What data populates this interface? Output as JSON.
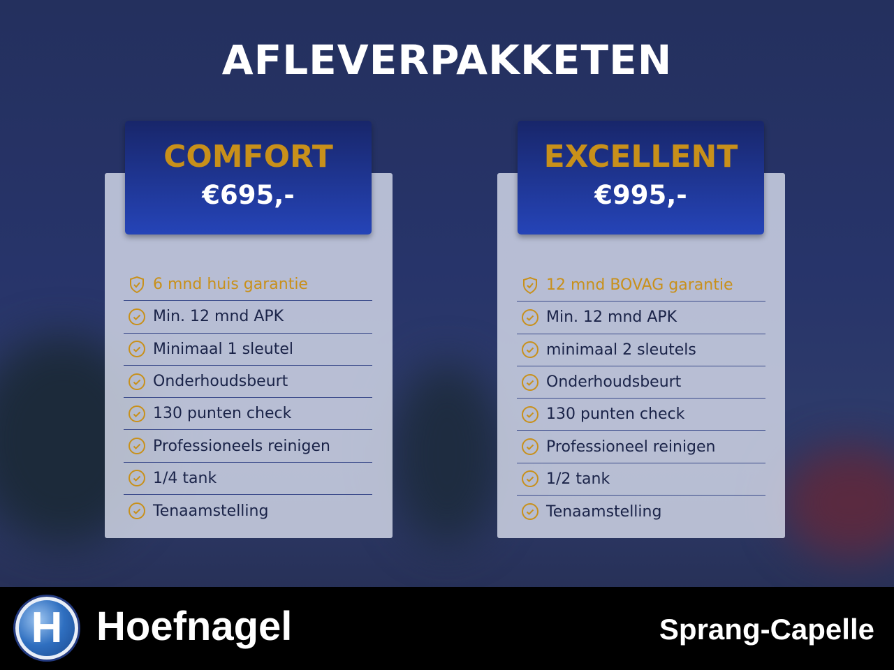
{
  "title": "AFLEVERPAKKETEN",
  "packages": [
    {
      "name": "COMFORT",
      "price": "€695,-",
      "items": [
        {
          "icon": "shield-check-icon",
          "text": "6 mnd huis garantie",
          "highlight": true
        },
        {
          "icon": "check-circle-icon",
          "text": "Min. 12 mnd APK"
        },
        {
          "icon": "check-circle-icon",
          "text": "Minimaal 1 sleutel"
        },
        {
          "icon": "check-circle-icon",
          "text": "Onderhoudsbeurt"
        },
        {
          "icon": "check-circle-icon",
          "text": "130 punten check"
        },
        {
          "icon": "check-circle-icon",
          "text": "Professioneels reinigen"
        },
        {
          "icon": "check-circle-icon",
          "text": "1/4 tank"
        },
        {
          "icon": "check-circle-icon",
          "text": "Tenaamstelling"
        }
      ]
    },
    {
      "name": "EXCELLENT",
      "price": "€995,-",
      "items": [
        {
          "icon": "shield-check-icon",
          "text": "12 mnd BOVAG garantie",
          "highlight": true
        },
        {
          "icon": "check-circle-icon",
          "text": "Min. 12 mnd APK"
        },
        {
          "icon": "check-circle-icon",
          "text": "minimaal 2 sleutels"
        },
        {
          "icon": "check-circle-icon",
          "text": "Onderhoudsbeurt"
        },
        {
          "icon": "check-circle-icon",
          "text": "130 punten check"
        },
        {
          "icon": "check-circle-icon",
          "text": "Professioneel reinigen"
        },
        {
          "icon": "check-circle-icon",
          "text": "1/2 tank"
        },
        {
          "icon": "check-circle-icon",
          "text": "Tenaamstelling"
        }
      ]
    }
  ],
  "footer": {
    "logo_letter": "H",
    "brand": "Hoefnagel",
    "location": "Sprang-Capelle"
  },
  "colors": {
    "gold": "#c8901a",
    "header_blue": "#2544b8",
    "text": "#1a2348"
  }
}
